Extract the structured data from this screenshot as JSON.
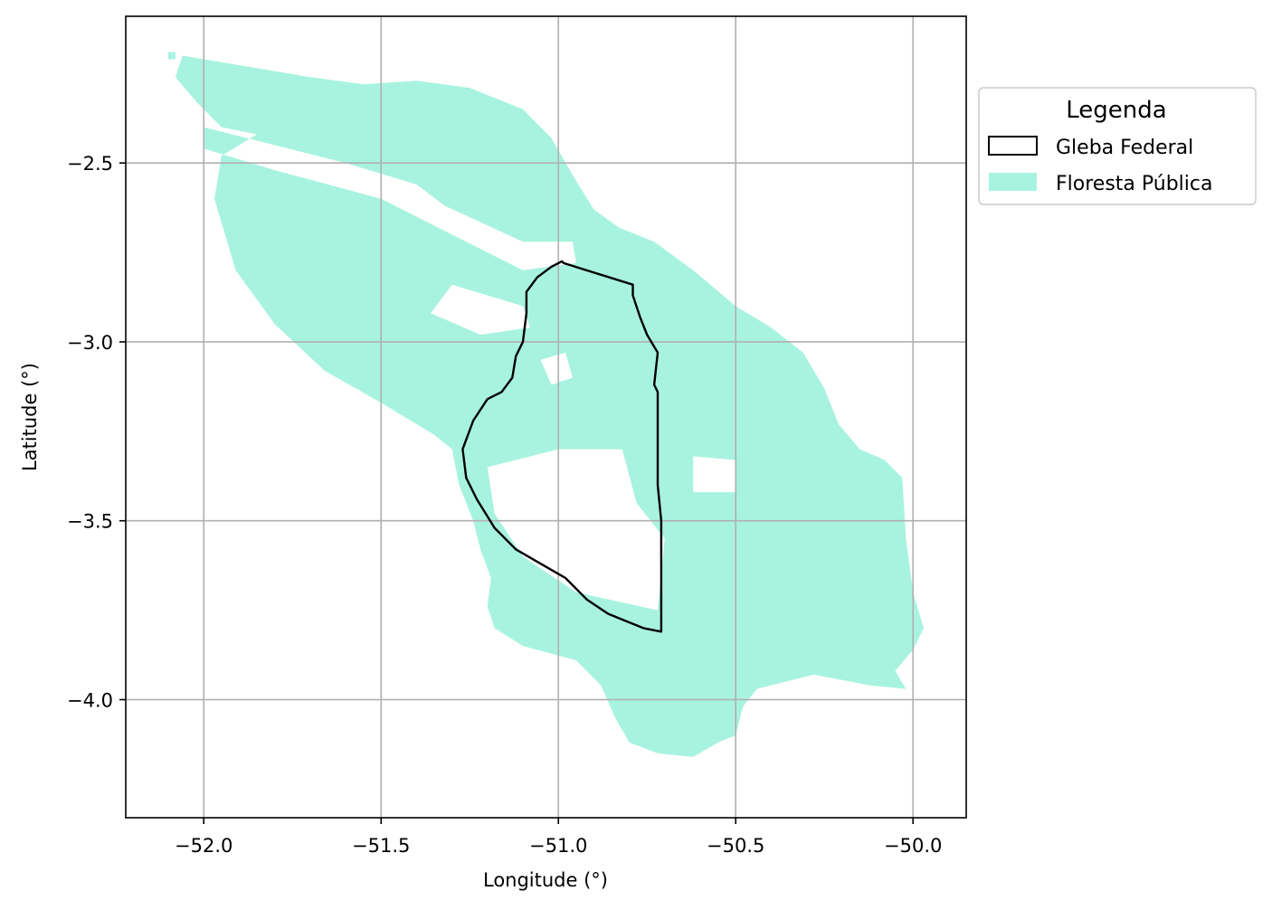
{
  "chart_data": {
    "type": "map",
    "xlabel": "Longitude (°)",
    "ylabel": "Latitude (°)",
    "xlim": [
      -52.22,
      -49.85
    ],
    "ylim": [
      -4.33,
      -2.09
    ],
    "xticks": [
      -52.0,
      -51.5,
      -51.0,
      -50.5,
      -50.0
    ],
    "yticks": [
      -2.5,
      -3.0,
      -3.5,
      -4.0
    ],
    "xtick_labels": [
      "−52.0",
      "−51.5",
      "−51.0",
      "−50.5",
      "−50.0"
    ],
    "ytick_labels": [
      "−2.5",
      "−3.0",
      "−3.5",
      "−4.0"
    ],
    "grid": true,
    "legend": {
      "title": "Legenda",
      "placement": "outside-right-top",
      "entries": [
        {
          "label": "Gleba Federal",
          "style": "outline",
          "color": "#000000"
        },
        {
          "label": "Floresta Pública",
          "style": "fill",
          "color": "#a8f3df"
        }
      ]
    },
    "layers": {
      "floresta_publica": {
        "name": "Floresta Pública",
        "color": "#a8f3df",
        "polygons": [
          [
            [
              -52.06,
              -2.2
            ],
            [
              -51.88,
              -2.23
            ],
            [
              -51.7,
              -2.26
            ],
            [
              -51.55,
              -2.28
            ],
            [
              -51.4,
              -2.27
            ],
            [
              -51.25,
              -2.29
            ],
            [
              -51.1,
              -2.35
            ],
            [
              -51.02,
              -2.43
            ],
            [
              -50.95,
              -2.55
            ],
            [
              -50.9,
              -2.63
            ],
            [
              -50.83,
              -2.68
            ],
            [
              -50.73,
              -2.72
            ],
            [
              -50.62,
              -2.8
            ],
            [
              -50.5,
              -2.9
            ],
            [
              -50.4,
              -2.96
            ],
            [
              -50.31,
              -3.03
            ],
            [
              -50.25,
              -3.13
            ],
            [
              -50.21,
              -3.23
            ],
            [
              -50.15,
              -3.3
            ],
            [
              -50.08,
              -3.33
            ],
            [
              -50.03,
              -3.38
            ],
            [
              -50.02,
              -3.55
            ],
            [
              -50.0,
              -3.7
            ],
            [
              -49.97,
              -3.8
            ],
            [
              -50.0,
              -3.86
            ],
            [
              -50.05,
              -3.92
            ],
            [
              -50.02,
              -3.97
            ],
            [
              -50.12,
              -3.96
            ],
            [
              -50.28,
              -3.93
            ],
            [
              -50.44,
              -3.97
            ],
            [
              -50.48,
              -4.02
            ],
            [
              -50.5,
              -4.1
            ],
            [
              -50.55,
              -4.12
            ],
            [
              -50.62,
              -4.16
            ],
            [
              -50.72,
              -4.15
            ],
            [
              -50.8,
              -4.12
            ],
            [
              -50.84,
              -4.05
            ],
            [
              -50.88,
              -3.96
            ],
            [
              -50.95,
              -3.89
            ],
            [
              -51.1,
              -3.85
            ],
            [
              -51.18,
              -3.8
            ],
            [
              -51.2,
              -3.74
            ],
            [
              -51.19,
              -3.66
            ],
            [
              -51.22,
              -3.58
            ],
            [
              -51.24,
              -3.5
            ],
            [
              -51.28,
              -3.4
            ],
            [
              -51.3,
              -3.3
            ],
            [
              -51.35,
              -3.26
            ],
            [
              -51.5,
              -3.17
            ],
            [
              -51.66,
              -3.08
            ],
            [
              -51.8,
              -2.95
            ],
            [
              -51.91,
              -2.8
            ],
            [
              -51.97,
              -2.6
            ],
            [
              -51.95,
              -2.48
            ],
            [
              -51.85,
              -2.42
            ],
            [
              -51.95,
              -2.4
            ],
            [
              -52.02,
              -2.33
            ],
            [
              -52.08,
              -2.26
            ]
          ],
          [
            [
              -52.1,
              -2.19
            ],
            [
              -52.08,
              -2.19
            ],
            [
              -52.08,
              -2.21
            ],
            [
              -52.1,
              -2.21
            ]
          ],
          [
            [
              -52.04,
              -2.27
            ],
            [
              -52.0,
              -2.25
            ],
            [
              -51.99,
              -2.29
            ],
            [
              -52.03,
              -2.31
            ]
          ]
        ],
        "holes": [
          [
            [
              -52.0,
              -2.4
            ],
            [
              -51.6,
              -2.5
            ],
            [
              -51.4,
              -2.56
            ],
            [
              -51.32,
              -2.62
            ],
            [
              -51.1,
              -2.72
            ],
            [
              -50.96,
              -2.72
            ],
            [
              -50.95,
              -2.78
            ],
            [
              -51.1,
              -2.8
            ],
            [
              -51.3,
              -2.7
            ],
            [
              -51.5,
              -2.6
            ],
            [
              -51.8,
              -2.52
            ],
            [
              -52.0,
              -2.46
            ]
          ],
          [
            [
              -51.3,
              -2.84
            ],
            [
              -51.1,
              -2.9
            ],
            [
              -51.08,
              -2.96
            ],
            [
              -51.22,
              -2.98
            ],
            [
              -51.36,
              -2.92
            ]
          ],
          [
            [
              -50.62,
              -3.32
            ],
            [
              -50.5,
              -3.33
            ],
            [
              -50.5,
              -3.42
            ],
            [
              -50.62,
              -3.42
            ]
          ],
          [
            [
              -51.0,
              -3.3
            ],
            [
              -50.82,
              -3.3
            ],
            [
              -50.78,
              -3.45
            ],
            [
              -50.7,
              -3.55
            ],
            [
              -50.72,
              -3.75
            ],
            [
              -50.95,
              -3.7
            ],
            [
              -51.1,
              -3.6
            ],
            [
              -51.18,
              -3.48
            ],
            [
              -51.2,
              -3.35
            ]
          ],
          [
            [
              -51.05,
              -3.05
            ],
            [
              -50.98,
              -3.03
            ],
            [
              -50.96,
              -3.1
            ],
            [
              -51.02,
              -3.12
            ]
          ]
        ]
      },
      "gleba_federal": {
        "name": "Gleba Federal",
        "color": "#000000",
        "outline": [
          [
            -51.0,
            -2.78
          ],
          [
            -50.99,
            -2.775
          ],
          [
            -50.985,
            -2.78
          ],
          [
            -50.79,
            -2.84
          ],
          [
            -50.79,
            -2.87
          ],
          [
            -50.77,
            -2.93
          ],
          [
            -50.75,
            -2.98
          ],
          [
            -50.72,
            -3.03
          ],
          [
            -50.73,
            -3.12
          ],
          [
            -50.72,
            -3.14
          ],
          [
            -50.72,
            -3.4
          ],
          [
            -50.71,
            -3.5
          ],
          [
            -50.71,
            -3.81
          ],
          [
            -50.76,
            -3.8
          ],
          [
            -50.81,
            -3.78
          ],
          [
            -50.86,
            -3.76
          ],
          [
            -50.92,
            -3.72
          ],
          [
            -50.98,
            -3.66
          ],
          [
            -51.05,
            -3.62
          ],
          [
            -51.12,
            -3.58
          ],
          [
            -51.18,
            -3.52
          ],
          [
            -51.23,
            -3.44
          ],
          [
            -51.26,
            -3.38
          ],
          [
            -51.27,
            -3.3
          ],
          [
            -51.24,
            -3.22
          ],
          [
            -51.2,
            -3.16
          ],
          [
            -51.16,
            -3.14
          ],
          [
            -51.13,
            -3.1
          ],
          [
            -51.12,
            -3.04
          ],
          [
            -51.1,
            -3.0
          ],
          [
            -51.09,
            -2.92
          ],
          [
            -51.09,
            -2.86
          ],
          [
            -51.06,
            -2.82
          ],
          [
            -51.02,
            -2.79
          ]
        ]
      }
    }
  }
}
